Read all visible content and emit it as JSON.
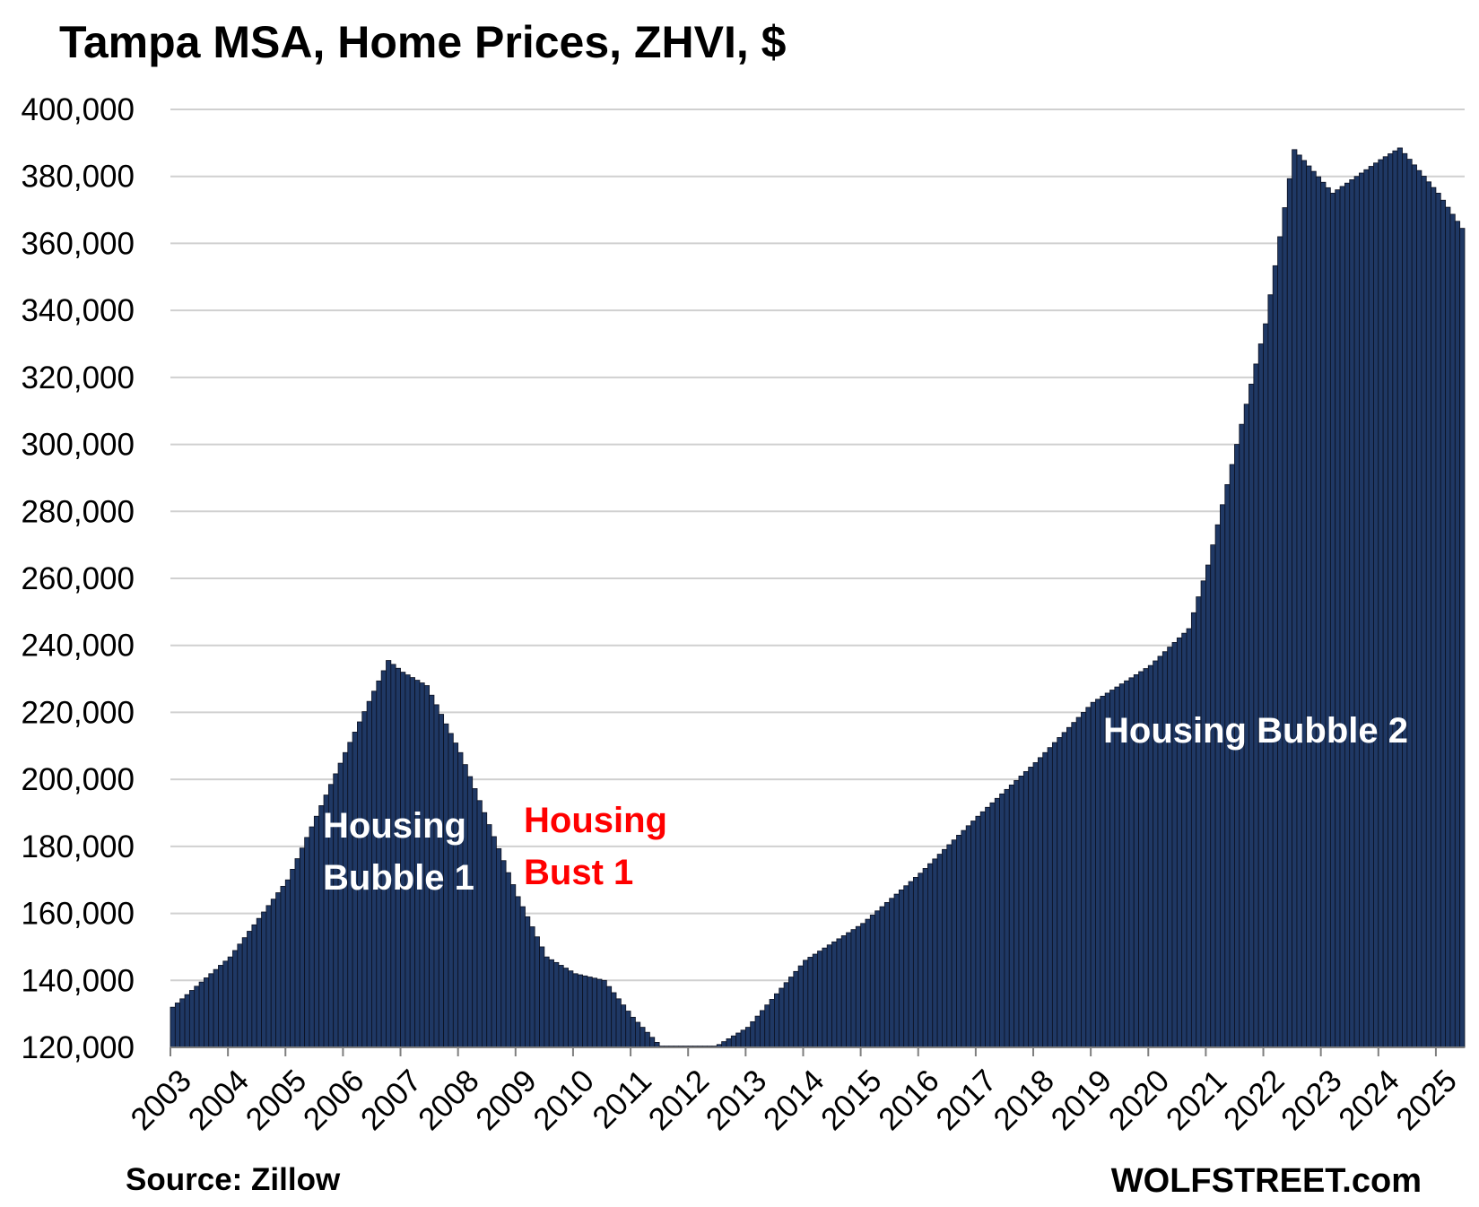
{
  "chart_data": {
    "type": "bar",
    "title": "Tampa MSA, Home Prices, ZHVI, $",
    "source": "Source: Zillow",
    "watermark": "WOLFSTREET.com",
    "ylim": [
      120000,
      400000
    ],
    "y_ticks": [
      "400,000",
      "380,000",
      "360,000",
      "340,000",
      "320,000",
      "300,000",
      "280,000",
      "260,000",
      "240,000",
      "220,000",
      "200,000",
      "180,000",
      "160,000",
      "140,000",
      "120,000"
    ],
    "y_tick_values": [
      400000,
      380000,
      360000,
      340000,
      320000,
      300000,
      280000,
      260000,
      240000,
      220000,
      200000,
      180000,
      160000,
      140000,
      120000
    ],
    "x_ticks": [
      "2003",
      "2004",
      "2005",
      "2006",
      "2007",
      "2008",
      "2009",
      "2010",
      "2011",
      "2012",
      "2013",
      "2014",
      "2015",
      "2016",
      "2017",
      "2018",
      "2019",
      "2020",
      "2021",
      "2022",
      "2023",
      "2024",
      "2025"
    ],
    "start": "2003-01",
    "frequency": "monthly",
    "grid": true,
    "bar_color": "#1F3864",
    "annotations": [
      {
        "text_lines": [
          "Housing",
          "Bubble 1"
        ],
        "color": "#ffffff"
      },
      {
        "text_lines": [
          "Housing",
          "Bust 1"
        ],
        "color": "#ff0000"
      },
      {
        "text_lines": [
          "Housing Bubble 2"
        ],
        "color": "#ffffff"
      }
    ],
    "annual_points": [
      [
        "2003-01",
        132000
      ],
      [
        "2004-01",
        147000
      ],
      [
        "2005-01",
        170000
      ],
      [
        "2006-01",
        208000
      ],
      [
        "2006-10",
        235500
      ],
      [
        "2007-01",
        232000
      ],
      [
        "2007-06",
        228000
      ],
      [
        "2008-01",
        208000
      ],
      [
        "2009-01",
        165000
      ],
      [
        "2009-07",
        147000
      ],
      [
        "2010-01",
        142000
      ],
      [
        "2010-07",
        140000
      ],
      [
        "2011-01",
        129000
      ],
      [
        "2011-07",
        120000
      ],
      [
        "2012-06",
        120000
      ],
      [
        "2013-01",
        126000
      ],
      [
        "2014-01",
        146000
      ],
      [
        "2015-01",
        157000
      ],
      [
        "2016-01",
        172000
      ],
      [
        "2017-01",
        189000
      ],
      [
        "2018-01",
        205000
      ],
      [
        "2019-01",
        223000
      ],
      [
        "2020-01",
        234000
      ],
      [
        "2020-09",
        245000
      ],
      [
        "2021-01",
        264000
      ],
      [
        "2022-01",
        336000
      ],
      [
        "2022-07",
        388000
      ],
      [
        "2023-03",
        375000
      ],
      [
        "2024-01",
        385000
      ],
      [
        "2024-05",
        388500
      ],
      [
        "2025-01",
        375000
      ],
      [
        "2025-06",
        364500
      ]
    ]
  }
}
